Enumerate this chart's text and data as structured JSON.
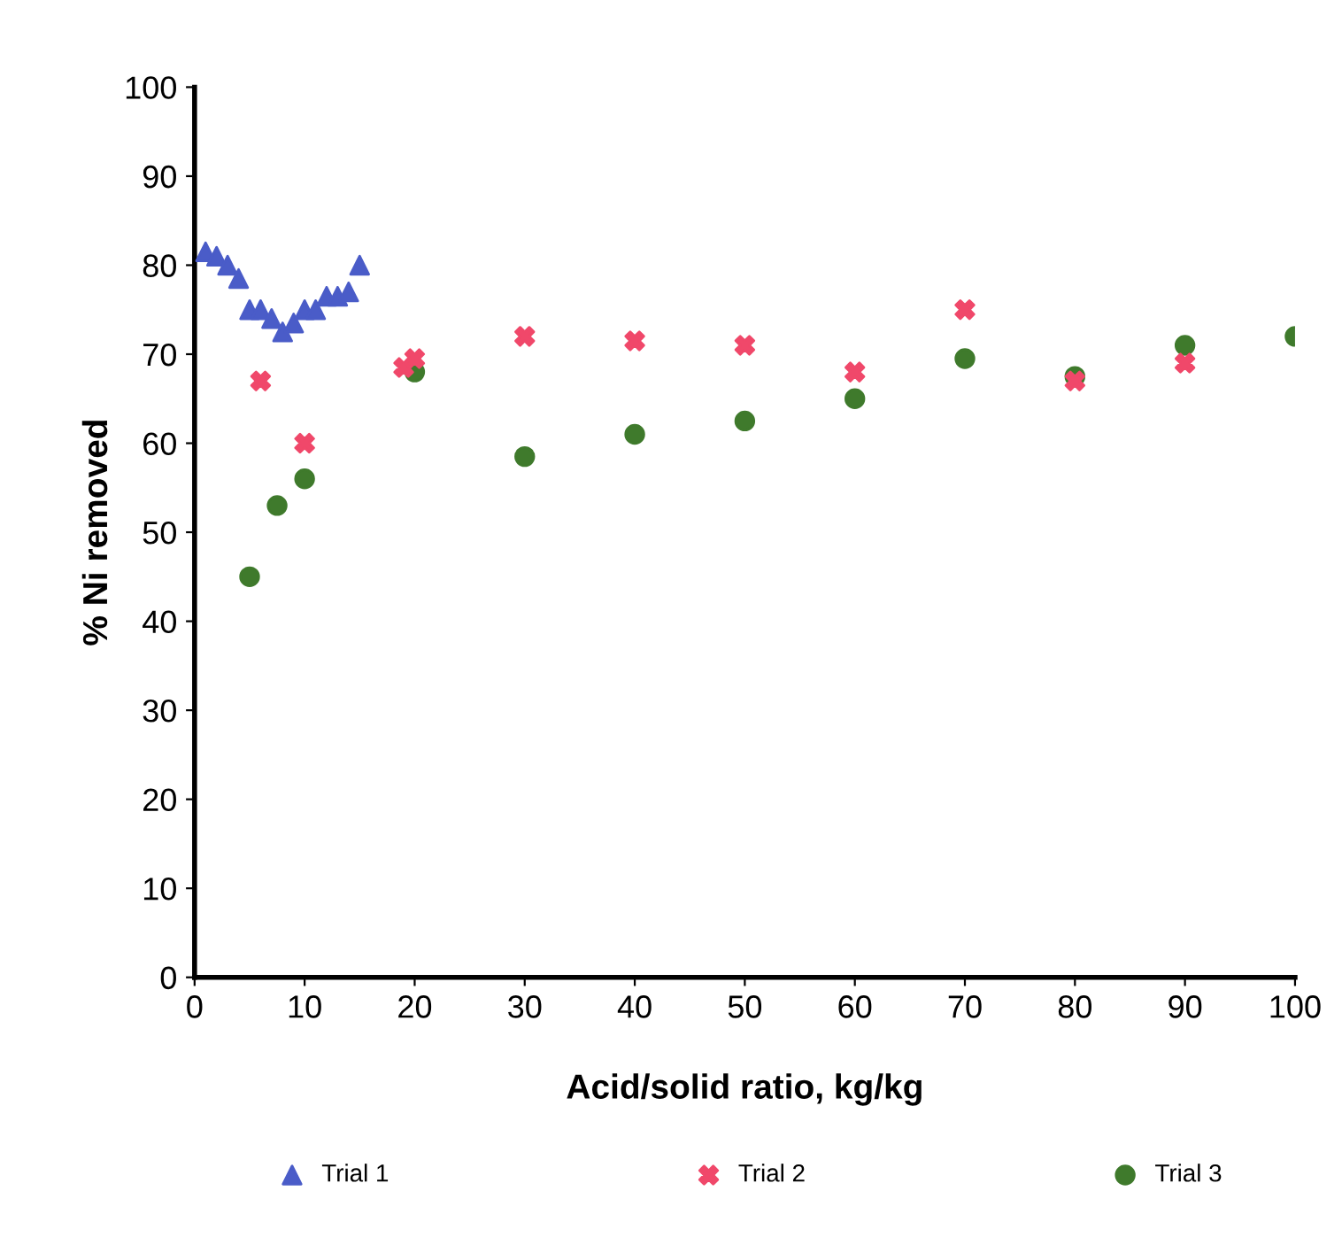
{
  "chart_data": {
    "type": "scatter",
    "xlabel": "Acid/solid ratio, kg/kg",
    "ylabel": "% Ni removed",
    "xlim": [
      0,
      100
    ],
    "ylim": [
      0,
      100
    ],
    "xticks": [
      0,
      10,
      20,
      30,
      40,
      50,
      60,
      70,
      80,
      90,
      100
    ],
    "yticks": [
      0,
      10,
      20,
      30,
      40,
      50,
      60,
      70,
      80,
      90,
      100
    ],
    "grid": false,
    "legend": "bottom",
    "series": [
      {
        "name": "Trial 1",
        "color": "#4a5cc8",
        "marker": "triangle",
        "x": [
          1,
          2,
          3,
          4,
          5,
          6,
          7,
          8,
          9,
          10,
          11,
          12,
          13,
          14,
          15
        ],
        "values": [
          81.5,
          81,
          80,
          78.5,
          75,
          75,
          74,
          72.5,
          73.5,
          75,
          75,
          76.5,
          76.5,
          77,
          80
        ]
      },
      {
        "name": "Trial 2",
        "color": "#f0486a",
        "marker": "cross",
        "x": [
          6,
          10,
          19,
          20,
          30,
          40,
          50,
          60,
          70,
          80,
          90
        ],
        "values": [
          67,
          60,
          68.5,
          69.5,
          72,
          71.5,
          71,
          68,
          75,
          67,
          69
        ]
      },
      {
        "name": "Trial 3",
        "color": "#3f7a2c",
        "marker": "circle",
        "x": [
          5,
          7.5,
          10,
          20,
          30,
          40,
          50,
          60,
          70,
          80,
          90,
          100
        ],
        "values": [
          45,
          53,
          56,
          68,
          58.5,
          61,
          62.5,
          65,
          69.5,
          67.5,
          71,
          72
        ]
      }
    ]
  }
}
